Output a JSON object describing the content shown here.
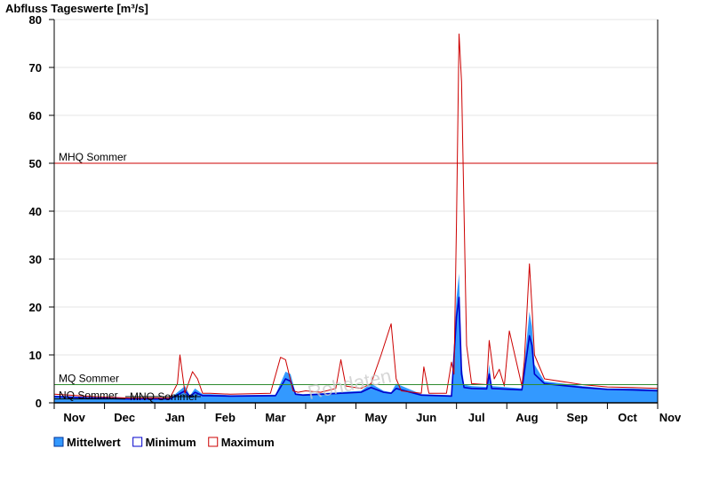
{
  "chart_data": {
    "type": "area",
    "title": "Abfluss Tageswerte [m³/s]",
    "xlabel": "",
    "ylabel": "",
    "ylim": [
      0,
      80
    ],
    "yticks": [
      0,
      10,
      20,
      30,
      40,
      50,
      60,
      70,
      80
    ],
    "x_tick_labels": [
      "Nov",
      "Dec",
      "Jan",
      "Feb",
      "Mar",
      "Apr",
      "May",
      "Jun",
      "Jul",
      "Aug",
      "Sep",
      "Oct",
      "Nov"
    ],
    "xlim": [
      0,
      12
    ],
    "grid": true,
    "legend_position": "bottom-left",
    "watermark": "Rohdaten",
    "reference_lines": [
      {
        "label": "MHQ Sommer",
        "value": 50,
        "color": "#cc0000"
      },
      {
        "label": "MQ Sommer",
        "value": 3.8,
        "color": "#2e8b2e"
      },
      {
        "label": "NQ Sommer",
        "value": 0.8,
        "color": "#000000"
      },
      {
        "label": "MNQ Sommer",
        "value": 1.3,
        "color": "#000000"
      }
    ],
    "series": [
      {
        "name": "Mittelwert",
        "color": "#3399ff",
        "x": [
          0,
          0.8,
          1.5,
          2.3,
          2.6,
          2.7,
          2.8,
          2.95,
          3.1,
          3.5,
          4.4,
          4.6,
          4.7,
          4.8,
          4.95,
          5.3,
          6.1,
          6.3,
          6.55,
          6.7,
          6.8,
          7.3,
          7.9,
          8.0,
          8.05,
          8.1,
          8.15,
          8.3,
          8.6,
          8.65,
          8.7,
          9.3,
          9.45,
          9.5,
          9.55,
          9.75,
          10.5,
          11.0,
          11.5,
          12
        ],
        "y": [
          1.5,
          1.1,
          0.9,
          0.9,
          3.5,
          1.5,
          3.0,
          1.8,
          1.8,
          1.6,
          1.7,
          6.5,
          6.0,
          2.0,
          1.8,
          2.0,
          2.5,
          4.0,
          2.5,
          2.2,
          4.0,
          1.8,
          1.6,
          22,
          27,
          8,
          3.8,
          3.5,
          3.3,
          8.0,
          3.5,
          3.0,
          19,
          16,
          8,
          4.5,
          3.5,
          3.0,
          3.0,
          2.8
        ]
      },
      {
        "name": "Minimum",
        "color": "#0000cc",
        "x": [
          0,
          0.8,
          1.5,
          2.3,
          2.6,
          2.7,
          2.8,
          2.95,
          3.1,
          3.5,
          4.4,
          4.6,
          4.7,
          4.8,
          4.95,
          5.3,
          6.1,
          6.3,
          6.55,
          6.7,
          6.8,
          7.3,
          7.9,
          8.0,
          8.05,
          8.1,
          8.15,
          8.3,
          8.6,
          8.65,
          8.7,
          9.3,
          9.45,
          9.5,
          9.55,
          9.75,
          10.5,
          11.0,
          11.5,
          12
        ],
        "y": [
          1.3,
          1.0,
          0.8,
          0.8,
          2.5,
          1.3,
          2.2,
          1.5,
          1.5,
          1.4,
          1.5,
          5.0,
          4.5,
          1.8,
          1.6,
          1.8,
          2.2,
          3.2,
          2.2,
          2.0,
          3.0,
          1.6,
          1.4,
          18,
          22,
          6,
          3.2,
          3.0,
          2.9,
          6.0,
          3.0,
          2.7,
          14,
          12,
          6,
          4.0,
          3.2,
          2.8,
          2.7,
          2.5
        ]
      },
      {
        "name": "Maximum",
        "color": "#cc0000",
        "x": [
          0,
          0.8,
          1.5,
          2.3,
          2.45,
          2.5,
          2.6,
          2.75,
          2.85,
          2.95,
          3.1,
          3.5,
          4.3,
          4.5,
          4.6,
          4.75,
          4.85,
          5.0,
          5.3,
          5.6,
          5.7,
          5.8,
          6.1,
          6.3,
          6.5,
          6.7,
          6.8,
          6.9,
          7.3,
          7.35,
          7.45,
          7.8,
          7.9,
          7.95,
          8.0,
          8.05,
          8.1,
          8.2,
          8.3,
          8.6,
          8.65,
          8.75,
          8.85,
          8.95,
          9.05,
          9.3,
          9.35,
          9.45,
          9.5,
          9.55,
          9.75,
          10.5,
          11.0,
          11.5,
          12
        ],
        "y": [
          1.8,
          1.3,
          1.0,
          1.0,
          4.0,
          10.0,
          2.0,
          6.5,
          5.0,
          2.0,
          2.0,
          1.8,
          2.0,
          9.5,
          9.0,
          2.5,
          2.2,
          2.5,
          2.2,
          3.0,
          9.0,
          3.5,
          3.0,
          4.0,
          10.0,
          16.5,
          5.0,
          2.5,
          2.0,
          7.5,
          2.0,
          2.0,
          8.5,
          6.0,
          38,
          77,
          67,
          12,
          4.0,
          3.8,
          13,
          5.0,
          7.0,
          3.5,
          15,
          3.5,
          9.0,
          29,
          20,
          10,
          5.0,
          3.8,
          3.3,
          3.2,
          3.0
        ]
      }
    ]
  }
}
